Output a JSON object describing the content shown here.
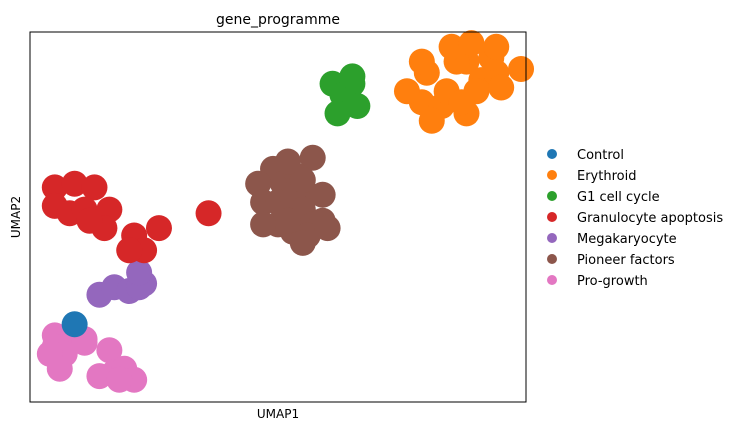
{
  "chart_data": {
    "type": "scatter",
    "title": "gene_programme",
    "xlabel": "UMAP1",
    "ylabel": "UMAP2",
    "xlim": [
      0,
      100
    ],
    "ylim": [
      0,
      100
    ],
    "grid": false,
    "x_ticks": [],
    "y_ticks": [],
    "legend_placement": "right",
    "series": [
      {
        "name": "Control",
        "color": "#1f77b4",
        "points": [
          [
            9,
            21
          ]
        ]
      },
      {
        "name": "Erythroid",
        "color": "#ff7f0e",
        "points": [
          [
            79,
            81
          ],
          [
            76,
            84
          ],
          [
            83,
            80
          ],
          [
            88,
            78
          ],
          [
            80,
            89
          ],
          [
            84,
            84
          ],
          [
            79,
            92
          ],
          [
            88,
            92
          ],
          [
            91,
            87
          ],
          [
            94,
            89
          ],
          [
            86,
            92
          ],
          [
            90,
            84
          ],
          [
            95,
            85
          ],
          [
            99,
            90
          ],
          [
            93,
            93
          ],
          [
            85,
            96
          ],
          [
            89,
            97
          ],
          [
            94,
            96
          ],
          [
            87,
            81
          ],
          [
            81,
            76
          ]
        ]
      },
      {
        "name": "G1 cell cycle",
        "color": "#2ca02c",
        "points": [
          [
            61,
            86
          ],
          [
            65,
            86
          ],
          [
            63,
            83
          ],
          [
            66,
            80
          ],
          [
            62,
            78
          ],
          [
            65,
            88
          ]
        ]
      },
      {
        "name": "Granulocyte apoptosis",
        "color": "#d62728",
        "points": [
          [
            5,
            58
          ],
          [
            9,
            59
          ],
          [
            13,
            58
          ],
          [
            5,
            53
          ],
          [
            8,
            51
          ],
          [
            11,
            52
          ],
          [
            16,
            52
          ],
          [
            15,
            47
          ],
          [
            12,
            49
          ],
          [
            21,
            45
          ],
          [
            26,
            47
          ],
          [
            23,
            41
          ],
          [
            20,
            41
          ],
          [
            36,
            51
          ]
        ]
      },
      {
        "name": "Megakaryocyte",
        "color": "#9467bd",
        "points": [
          [
            14,
            29
          ],
          [
            17,
            31
          ],
          [
            20,
            30
          ],
          [
            22,
            31
          ],
          [
            23,
            32
          ],
          [
            22,
            35
          ]
        ]
      },
      {
        "name": "Pioneer factors",
        "color": "#8c564b",
        "points": [
          [
            49,
            63
          ],
          [
            57,
            66
          ],
          [
            51,
            59
          ],
          [
            54,
            61
          ],
          [
            56,
            56
          ],
          [
            59,
            56
          ],
          [
            46,
            59
          ],
          [
            47,
            54
          ],
          [
            50,
            54
          ],
          [
            53,
            55
          ],
          [
            55,
            52
          ],
          [
            50,
            48
          ],
          [
            53,
            46
          ],
          [
            57,
            48
          ],
          [
            59,
            49
          ],
          [
            56,
            45
          ],
          [
            52,
            49
          ],
          [
            55,
            43
          ],
          [
            60,
            47
          ],
          [
            47,
            48
          ],
          [
            55,
            60
          ],
          [
            52,
            65
          ]
        ]
      },
      {
        "name": "Pro-growth",
        "color": "#e377c2",
        "points": [
          [
            5,
            18
          ],
          [
            8,
            18
          ],
          [
            11,
            16
          ],
          [
            5,
            15
          ],
          [
            7,
            13
          ],
          [
            4,
            13
          ],
          [
            11,
            17
          ],
          [
            16,
            14
          ],
          [
            17,
            8
          ],
          [
            19,
            9
          ],
          [
            14,
            7
          ],
          [
            21,
            6
          ],
          [
            18,
            6
          ],
          [
            6,
            9
          ]
        ]
      }
    ]
  }
}
